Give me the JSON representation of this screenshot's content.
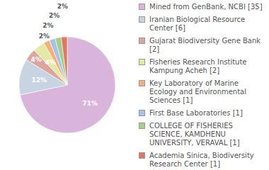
{
  "chart_data": {
    "type": "pie",
    "categories": [
      "Mined from GenBank, NCBI [35]",
      "Iranian Biological Resource Center [6]",
      "Gujarat Biodiversity Gene Bank [2]",
      "Fisheries Research Institute Kampung Acheh [2]",
      "Key Laboratory of Marine Ecology and Environmental Sciences [1]",
      "First Base Laboratories [1]",
      "COLLEGE OF FISHERIES SCIENCE, KAMDHENU UNIVERSITY, VERAVAL [1]",
      "Academia Sinica, Biodiversity Research Center [1]"
    ],
    "values": [
      71,
      12,
      4,
      4,
      2,
      2,
      2,
      2
    ],
    "value_labels": [
      "71%",
      "12%",
      "4%",
      "4%",
      "2%",
      "2%",
      "2%",
      "2%"
    ],
    "colors": [
      "#d9b5dc",
      "#c8d4e2",
      "#dca5a0",
      "#e4eaa6",
      "#f4b07a",
      "#a7c1ea",
      "#a4cf8a",
      "#e07763"
    ],
    "data_labels": true,
    "legend": "right"
  }
}
